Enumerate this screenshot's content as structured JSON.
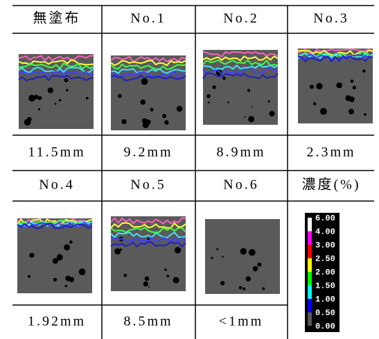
{
  "table": {
    "rows": [
      [
        "無塗布",
        "No.1",
        "No.2",
        "No.3"
      ],
      [
        "11.5mm",
        "9.2mm",
        "8.9mm",
        "2.3mm"
      ],
      [
        "No.4",
        "No.5",
        "No.6",
        "濃度(%)"
      ],
      [
        "1.92mm",
        "8.5mm",
        "<1mm"
      ]
    ],
    "legend": {
      "labels": [
        "6.00",
        "4.00",
        "3.00",
        "2.50",
        "2.00",
        "1.50",
        "1.00",
        "0.50",
        "0.00"
      ]
    }
  }
}
